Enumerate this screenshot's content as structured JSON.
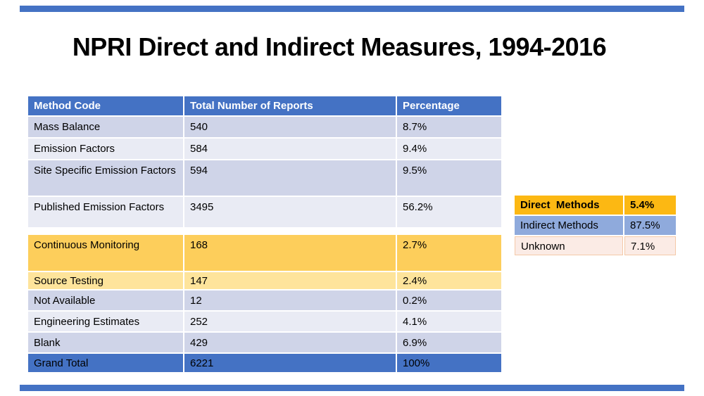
{
  "slide": {
    "title": "NPRI Direct and Indirect Measures, 1994-2016"
  },
  "colors": {
    "accent_blue": "#4472C4",
    "band_dark": "#CFD4E8",
    "band_light": "#E9EBF4",
    "highlight_gold": "#FDCE5B",
    "highlight_light_yellow": "#FEE49B",
    "summary_orange": "#FCB813",
    "summary_blue": "#8FAADC",
    "summary_pink": "#FBEBE5",
    "summary_pink_border": "#F4C9A8",
    "header_text": "#FFFFFF",
    "body_text": "#000000"
  },
  "main_table": {
    "headers": [
      "Method Code",
      "Total Number of Reports",
      "Percentage"
    ],
    "rows": [
      {
        "method": "Mass Balance",
        "reports": "540",
        "percentage": "8.7%"
      },
      {
        "method": "Emission Factors",
        "reports": "584",
        "percentage": "9.4%"
      },
      {
        "method": "Site Specific Emission Factors",
        "reports": "594",
        "percentage": "9.5%"
      },
      {
        "method": "Published Emission Factors",
        "reports": "3495",
        "percentage": "56.2%"
      },
      {
        "method": "Continuous Monitoring",
        "reports": "168",
        "percentage": "2.7%"
      },
      {
        "method": "Source Testing",
        "reports": "147",
        "percentage": "2.4%"
      },
      {
        "method": "Not Available",
        "reports": "12",
        "percentage": "0.2%"
      },
      {
        "method": "Engineering Estimates",
        "reports": "252",
        "percentage": "4.1%"
      },
      {
        "method": "Blank",
        "reports": "429",
        "percentage": "6.9%"
      },
      {
        "method": "Grand Total",
        "reports": "6221",
        "percentage": "100%"
      }
    ]
  },
  "summary_table": {
    "rows": [
      {
        "label": "Direct  Methods",
        "value": "5.4%"
      },
      {
        "label": "Indirect Methods",
        "value": "87.5%"
      },
      {
        "label": "Unknown",
        "value": "7.1%"
      }
    ]
  }
}
